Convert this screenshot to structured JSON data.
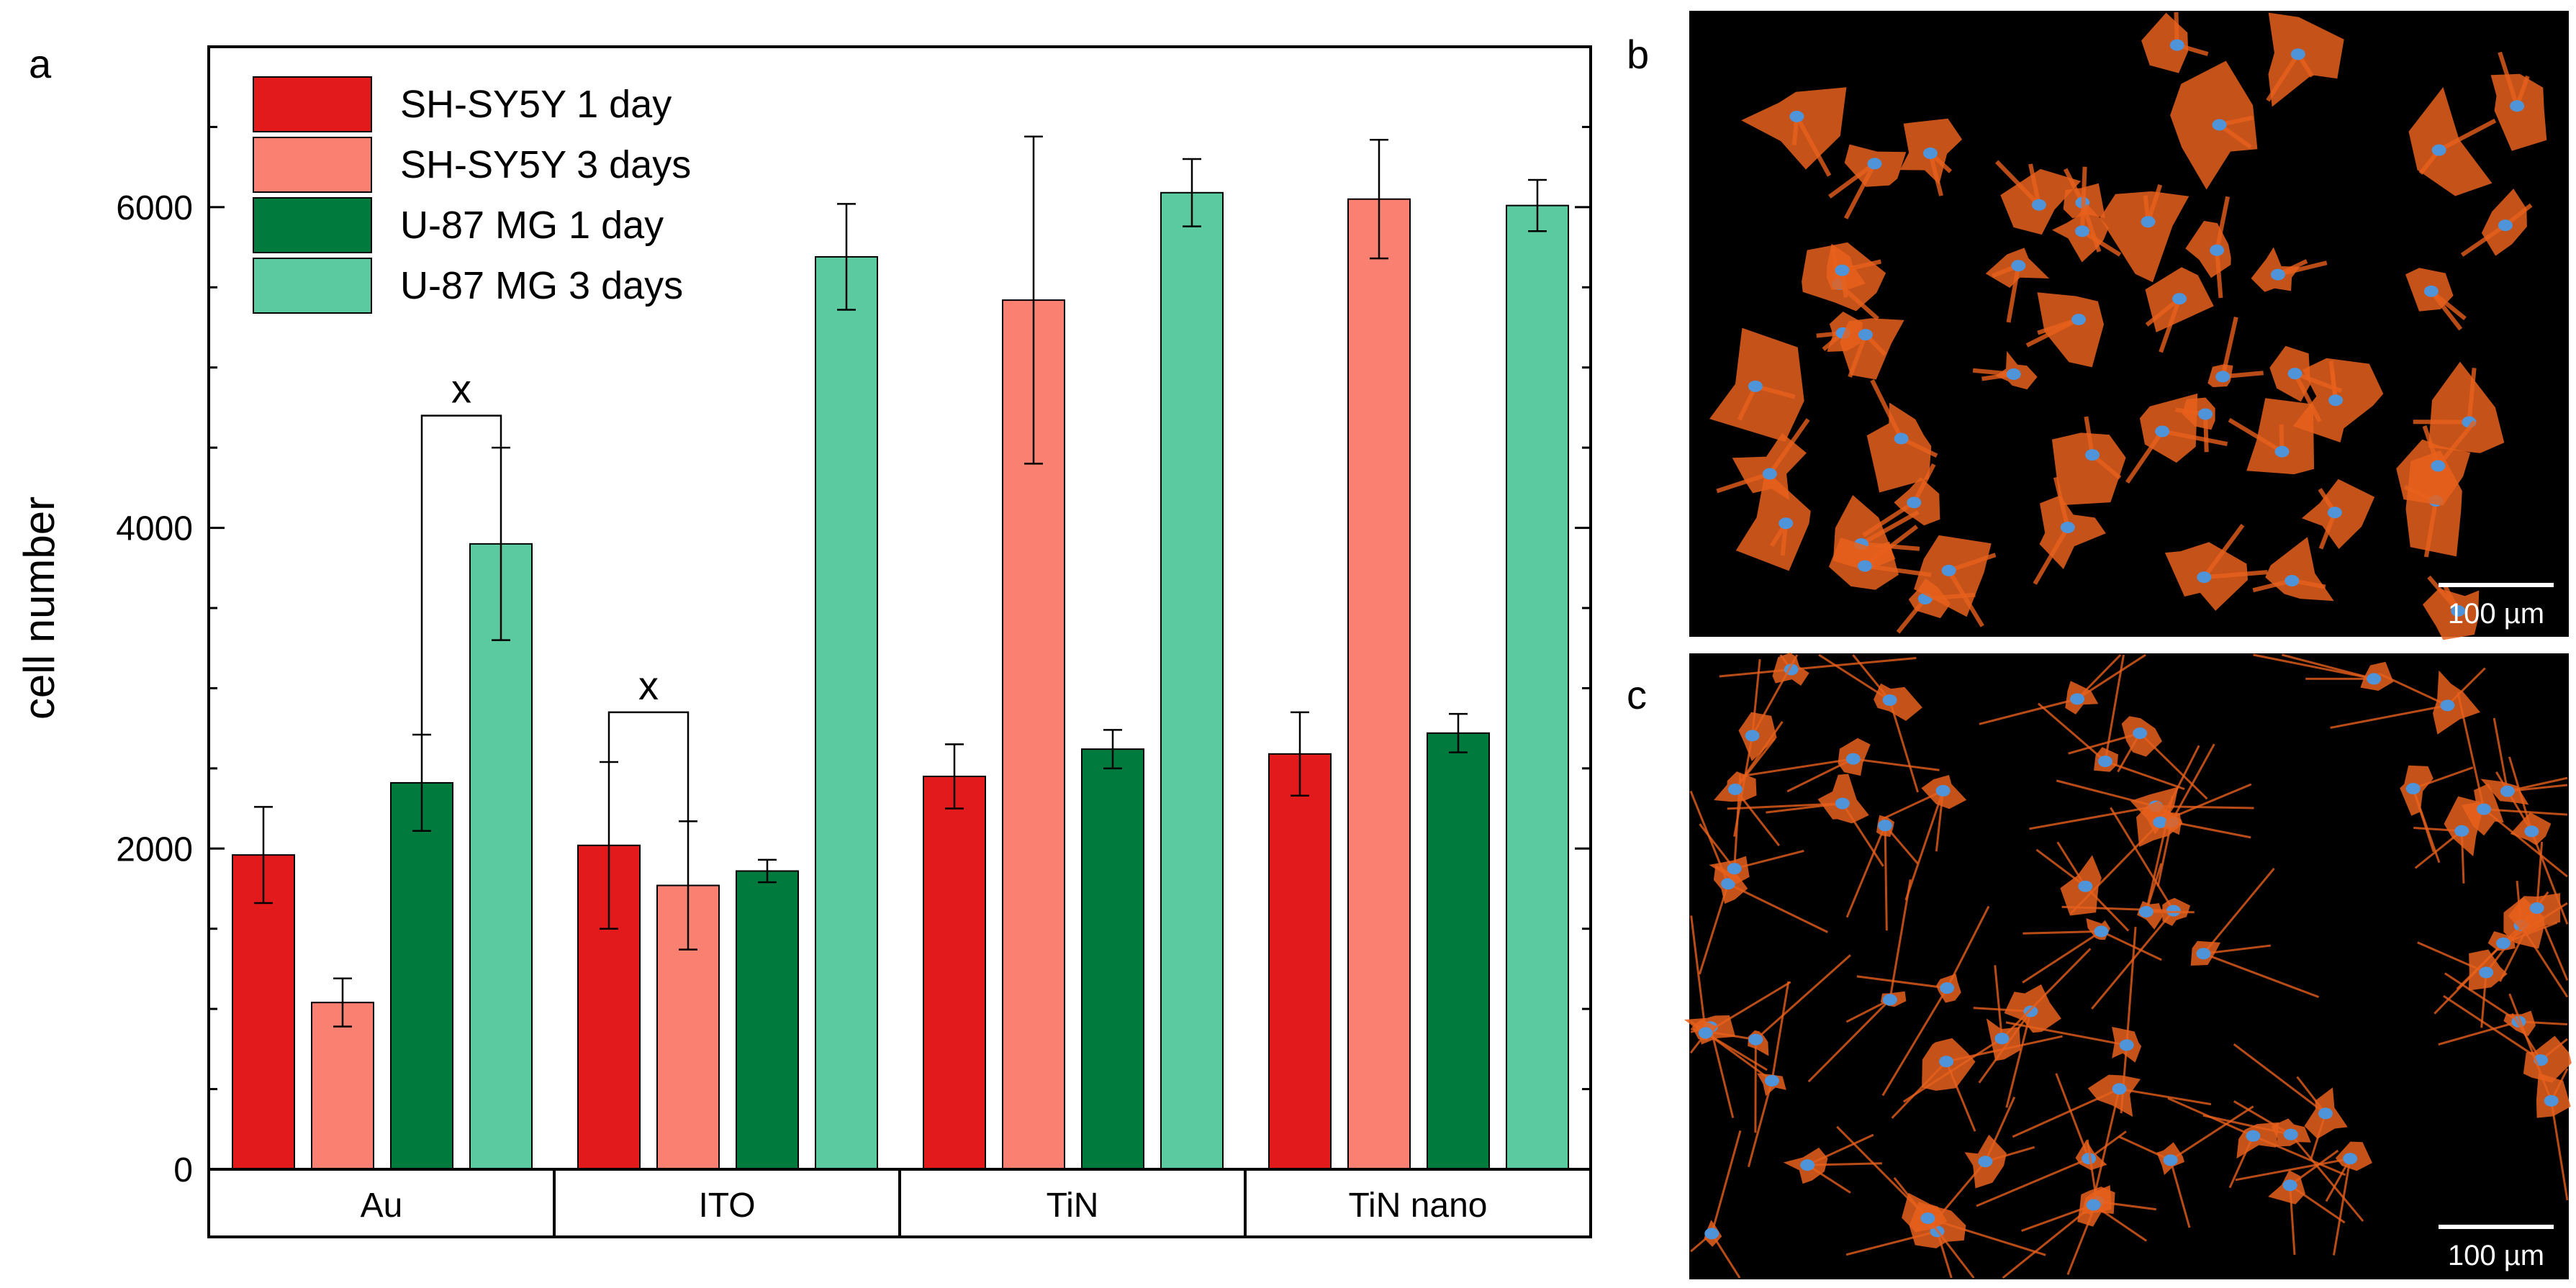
{
  "figure": {
    "panel_labels": [
      "a",
      "b",
      "c"
    ]
  },
  "chart_data": {
    "type": "bar",
    "title": "",
    "xlabel": "",
    "ylabel": "cell number",
    "ylim": [
      0,
      7000
    ],
    "yticks": [
      0,
      2000,
      4000,
      6000
    ],
    "grid": false,
    "legend_position": "top-left",
    "categories": [
      "Au",
      "ITO",
      "TiN",
      "TiN nano"
    ],
    "series": [
      {
        "name": "SH-SY5Y 1 day",
        "color": "#e31a1c",
        "values": [
          1960,
          2020,
          2450,
          2590
        ],
        "errors": [
          300,
          520,
          200,
          260
        ]
      },
      {
        "name": "SH-SY5Y 3 days",
        "color": "#fa8072",
        "values": [
          1040,
          1770,
          5420,
          6050
        ],
        "errors": [
          150,
          400,
          1020,
          370
        ]
      },
      {
        "name": "U-87 MG 1 day",
        "color": "#007a3d",
        "values": [
          2410,
          1860,
          2620,
          2720
        ],
        "errors": [
          300,
          70,
          120,
          120
        ]
      },
      {
        "name": "U-87 MG 3 days",
        "color": "#5ccaa0",
        "values": [
          3900,
          5690,
          6090,
          6010
        ],
        "errors": [
          600,
          330,
          210,
          160
        ]
      }
    ],
    "annotations": [
      {
        "text": "x",
        "category": "Au",
        "between": [
          "U-87 MG 1 day",
          "U-87 MG 3 days"
        ],
        "level": 4700
      },
      {
        "text": "x",
        "category": "ITO",
        "between": [
          "SH-SY5Y 1 day",
          "SH-SY5Y 3 days"
        ],
        "level": 2850
      }
    ]
  },
  "micrographs": [
    {
      "panel": "b",
      "scale_bar": "100 µm",
      "cell_color": "#e8601c",
      "nucleus_color": "#4f93d8",
      "background": "#000000"
    },
    {
      "panel": "c",
      "scale_bar": "100 µm",
      "cell_color": "#e8601c",
      "nucleus_color": "#4f93d8",
      "background": "#000000"
    }
  ]
}
